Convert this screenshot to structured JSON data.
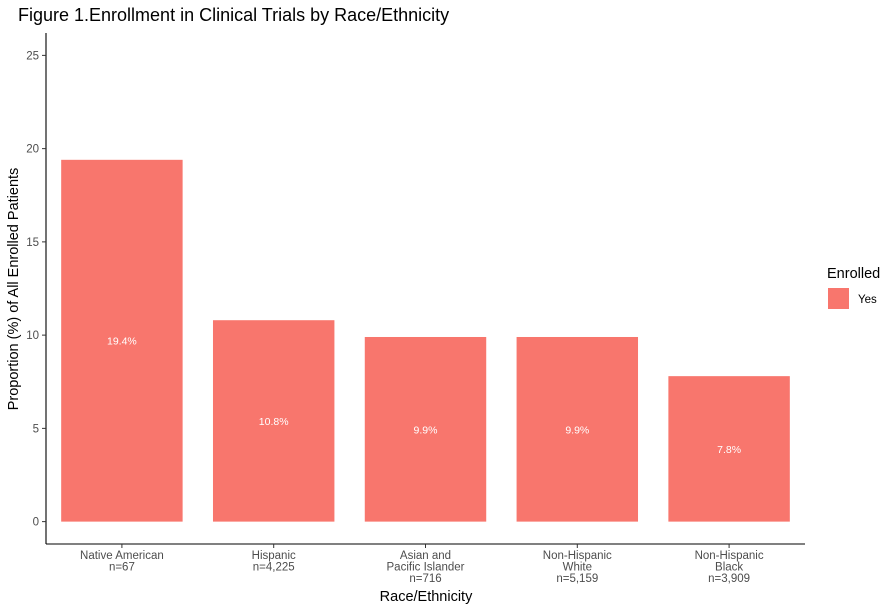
{
  "chart_data": {
    "type": "bar",
    "title": "Figure 1.Enrollment in Clinical Trials by Race/Ethnicity",
    "xlabel": "Race/Ethnicity",
    "ylabel": "Proportion (%) of All Enrolled Patients",
    "ylim": [
      -1.2,
      26.2
    ],
    "yticks": [
      0,
      5,
      10,
      15,
      20,
      25
    ],
    "grid": false,
    "categories": [
      [
        "Native American",
        "n=67"
      ],
      [
        "Hispanic",
        "n=4,225"
      ],
      [
        "Asian and",
        "Pacific Islander",
        "n=716"
      ],
      [
        "Non-Hispanic",
        "White",
        "n=5,159"
      ],
      [
        "Non-Hispanic",
        "Black",
        "n=3,909"
      ]
    ],
    "series": [
      {
        "name": "Yes",
        "color": "#F8766D",
        "values": [
          19.4,
          10.8,
          9.9,
          9.9,
          7.8
        ],
        "labels": [
          "19.4%",
          "10.8%",
          "9.9%",
          "9.9%",
          "7.8%"
        ]
      }
    ],
    "legend": {
      "title": "Enrolled",
      "placement": "right"
    }
  }
}
